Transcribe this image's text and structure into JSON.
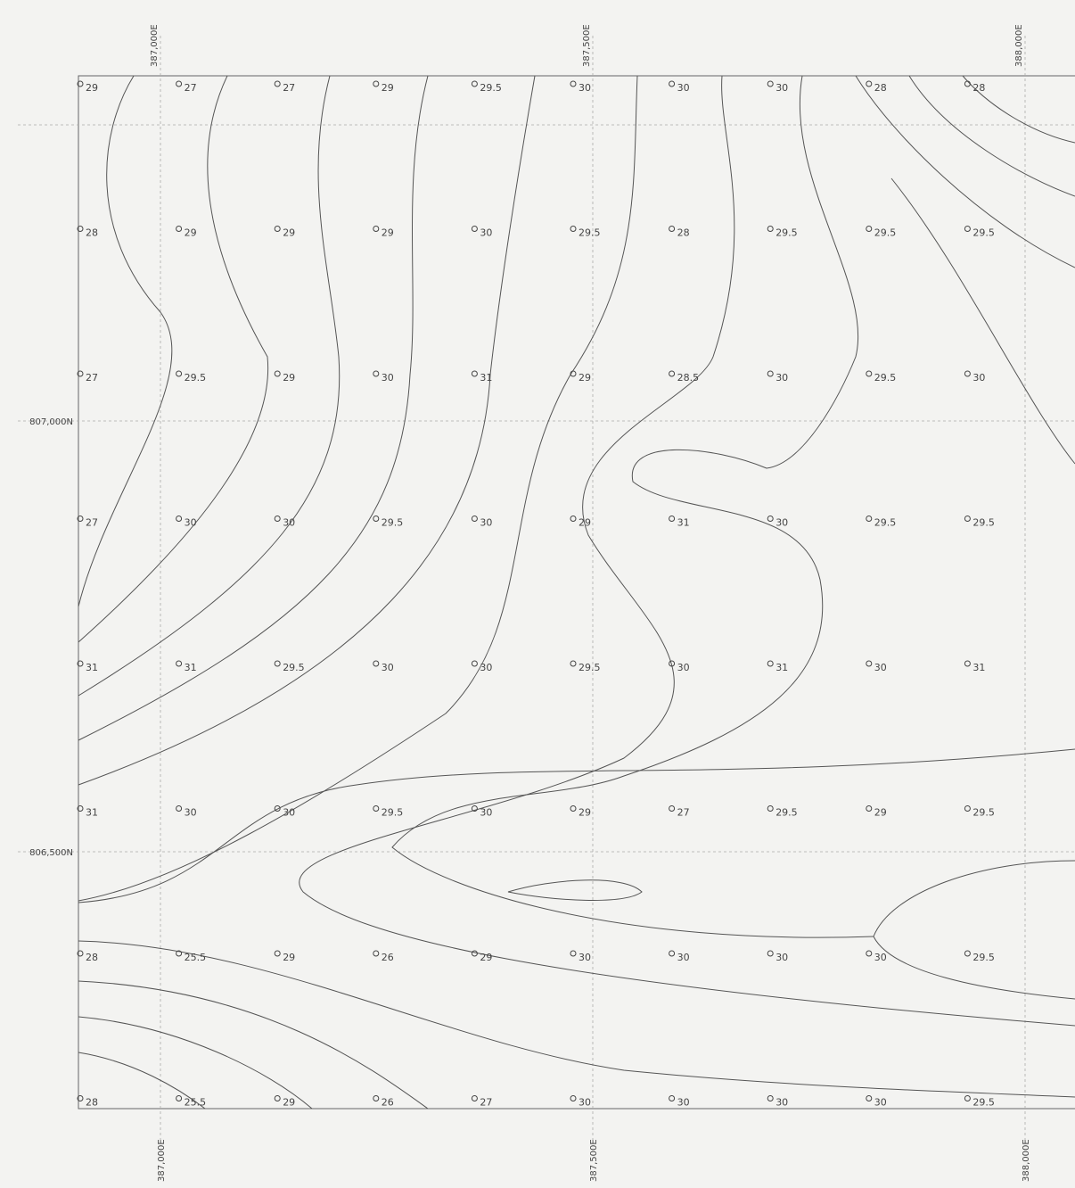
{
  "map": {
    "top_eastings": [
      "387,000E",
      "387,500E",
      "388,000E"
    ],
    "bottom_eastings": [
      "387,000E",
      "387,500E",
      "388,000E"
    ],
    "northings": [
      "807,000N",
      "806,500N"
    ],
    "points": [
      [
        29,
        27,
        27,
        29,
        29.5,
        30,
        30,
        30,
        28,
        28
      ],
      [
        28,
        29,
        29,
        29,
        30,
        29.5,
        28,
        29.5,
        29.5,
        29.5
      ],
      [
        27,
        29.5,
        29,
        30,
        31,
        29,
        28.5,
        30,
        29.5,
        30
      ],
      [
        27,
        30,
        30,
        29.5,
        30,
        29,
        31,
        30,
        29.5,
        29.5
      ],
      [
        31,
        31,
        29.5,
        30,
        30,
        29.5,
        30,
        31,
        30,
        31
      ],
      [
        31,
        30,
        30,
        29.5,
        30,
        29,
        27,
        29.5,
        29,
        29.5
      ],
      [
        28,
        25.5,
        29,
        26,
        29,
        30,
        30,
        30,
        30,
        29.5
      ],
      [
        28,
        25.5,
        29,
        26,
        27,
        30,
        30,
        30,
        30,
        29.5
      ]
    ]
  }
}
